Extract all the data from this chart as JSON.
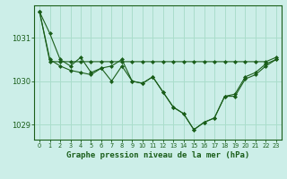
{
  "title": "Graphe pression niveau de la mer (hPa)",
  "background_color": "#cceee8",
  "grid_color": "#aaddcc",
  "line_color": "#1a5e1a",
  "x_labels": [
    "0",
    "1",
    "2",
    "3",
    "4",
    "5",
    "6",
    "7",
    "8",
    "9",
    "10",
    "11",
    "12",
    "13",
    "14",
    "15",
    "16",
    "17",
    "18",
    "19",
    "20",
    "21",
    "22",
    "23"
  ],
  "hours": [
    0,
    1,
    2,
    3,
    4,
    5,
    6,
    7,
    8,
    9,
    10,
    11,
    12,
    13,
    14,
    15,
    16,
    17,
    18,
    19,
    20,
    21,
    22,
    23
  ],
  "series_current": [
    1031.6,
    1031.1,
    1030.5,
    1030.35,
    1030.55,
    1030.2,
    1030.3,
    1030.35,
    1030.5,
    1030.0,
    1029.95,
    1030.1,
    1029.75,
    1029.4,
    1029.25,
    1028.88,
    1029.05,
    1029.15,
    1029.65,
    1029.7,
    1030.1,
    1030.2,
    1030.4,
    1030.5
  ],
  "series_max": [
    1031.6,
    1030.45,
    1030.45,
    1030.45,
    1030.45,
    1030.45,
    1030.45,
    1030.45,
    1030.45,
    1030.45,
    1030.45,
    1030.45,
    1030.45,
    1030.45,
    1030.45,
    1030.45,
    1030.45,
    1030.45,
    1030.45,
    1030.45,
    1030.45,
    1030.45,
    1030.45,
    1030.55
  ],
  "series_min": [
    1031.6,
    1030.5,
    1030.35,
    1030.25,
    1030.2,
    1030.15,
    1030.3,
    1030.0,
    1030.35,
    1030.0,
    1029.95,
    1030.1,
    1029.75,
    1029.4,
    1029.25,
    1028.88,
    1029.05,
    1029.15,
    1029.65,
    1029.65,
    1030.05,
    1030.15,
    1030.35,
    1030.5
  ],
  "ylim": [
    1028.65,
    1031.75
  ],
  "yticks": [
    1029,
    1030,
    1031
  ],
  "marker": "D",
  "marker_size": 2.0,
  "linewidth": 0.8
}
